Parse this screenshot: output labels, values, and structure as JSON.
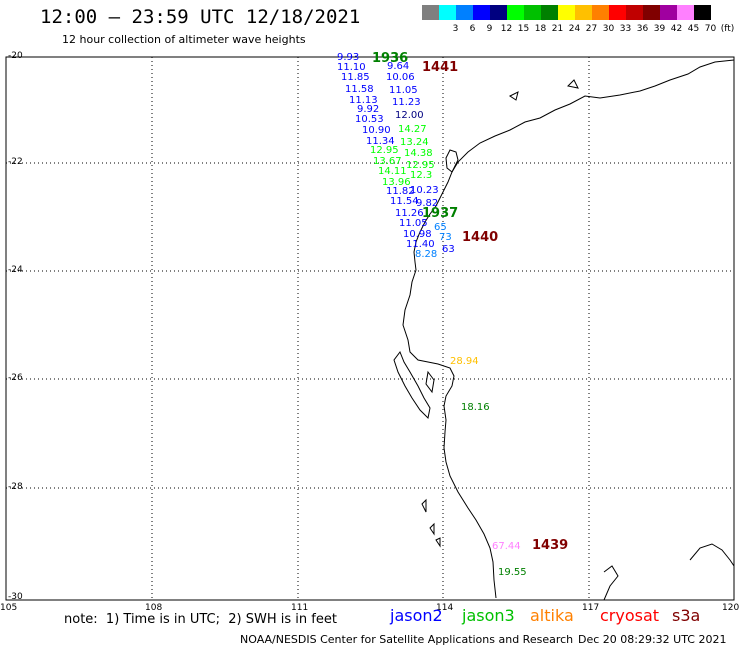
{
  "title": "12:00 – 23:59 UTC 12/18/2021",
  "subtitle": "12 hour collection of altimeter wave heights",
  "legend": [
    {
      "label": "",
      "color": "#7f7f7f"
    },
    {
      "label": "3",
      "color": "#00ffff"
    },
    {
      "label": "6",
      "color": "#0080ff"
    },
    {
      "label": "9",
      "color": "#0000ff"
    },
    {
      "label": "12",
      "color": "#000080"
    },
    {
      "label": "15",
      "color": "#00ff00"
    },
    {
      "label": "18",
      "color": "#00c000"
    },
    {
      "label": "21",
      "color": "#008000"
    },
    {
      "label": "24",
      "color": "#ffff00"
    },
    {
      "label": "27",
      "color": "#ffc000"
    },
    {
      "label": "30",
      "color": "#ff8000"
    },
    {
      "label": "33",
      "color": "#ff0000"
    },
    {
      "label": "36",
      "color": "#c00000"
    },
    {
      "label": "39",
      "color": "#800000"
    },
    {
      "label": "42",
      "color": "#a000a0"
    },
    {
      "label": "45",
      "color": "#ff80ff"
    },
    {
      "label": "70",
      "color": "#e0e0e0"
    },
    {
      "label": "(ft)",
      "color": "#000000"
    }
  ],
  "lat_labels": [
    "-20",
    "-22",
    "-24",
    "-26",
    "-28",
    "-30"
  ],
  "lon_labels": [
    "105",
    "108",
    "111",
    "114",
    "117",
    "120"
  ],
  "time_labels": [
    {
      "text": "1936",
      "color": "#008000"
    },
    {
      "text": "1441",
      "color": "#800000"
    },
    {
      "text": "1937",
      "color": "#008000"
    },
    {
      "text": "1440",
      "color": "#800000"
    },
    {
      "text": "1439",
      "color": "#800000"
    }
  ],
  "observations": [
    {
      "value": "9.93",
      "color": "#0000ff"
    },
    {
      "value": "9.64",
      "color": "#0000ff"
    },
    {
      "value": "11.10",
      "color": "#0000ff"
    },
    {
      "value": "10.06",
      "color": "#0000ff"
    },
    {
      "value": "11.85",
      "color": "#0000ff"
    },
    {
      "value": "11.58",
      "color": "#0000ff"
    },
    {
      "value": "11.05",
      "color": "#0000ff"
    },
    {
      "value": "11.13",
      "color": "#0000ff"
    },
    {
      "value": "11.23",
      "color": "#0000ff"
    },
    {
      "value": "9.92",
      "color": "#0000ff"
    },
    {
      "value": "10.53",
      "color": "#0000ff"
    },
    {
      "value": "12.00",
      "color": "#000080"
    },
    {
      "value": "10.90",
      "color": "#0000ff"
    },
    {
      "value": "14.27",
      "color": "#00ff00"
    },
    {
      "value": "11.34",
      "color": "#0000ff"
    },
    {
      "value": "13.24",
      "color": "#00ff00"
    },
    {
      "value": "12.95",
      "color": "#00ff00"
    },
    {
      "value": "14.38",
      "color": "#00ff00"
    },
    {
      "value": "13.67",
      "color": "#00ff00"
    },
    {
      "value": "12.95",
      "color": "#00ff00"
    },
    {
      "value": "14.11",
      "color": "#00ff00"
    },
    {
      "value": "12.3",
      "color": "#00ff00"
    },
    {
      "value": "13.96",
      "color": "#00ff00"
    },
    {
      "value": "11.82",
      "color": "#0000ff"
    },
    {
      "value": "10.23",
      "color": "#0000ff"
    },
    {
      "value": "11.54",
      "color": "#0000ff"
    },
    {
      "value": "9.82",
      "color": "#0000ff"
    },
    {
      "value": "11.26",
      "color": "#0000ff"
    },
    {
      "value": "11.05",
      "color": "#0000ff"
    },
    {
      "value": "10.98",
      "color": "#0000ff"
    },
    {
      "value": "11.40",
      "color": "#0000ff"
    },
    {
      "value": "65",
      "color": "#0080ff"
    },
    {
      "value": "73",
      "color": "#0080ff"
    },
    {
      "value": "8.28",
      "color": "#0080ff"
    },
    {
      "value": "63",
      "color": "#0000ff"
    },
    {
      "value": "28.94",
      "color": "#ffc000"
    },
    {
      "value": "18.16",
      "color": "#008000"
    },
    {
      "value": "67.44",
      "color": "#ff80ff"
    },
    {
      "value": "19.55",
      "color": "#008000"
    }
  ],
  "footnote": "note:  1) Time is in UTC;  2) SWH is in feet",
  "satellites": [
    {
      "name": "jason2",
      "color": "#0000ff"
    },
    {
      "name": "jason3",
      "color": "#00c000"
    },
    {
      "name": "altika",
      "color": "#ff8000"
    },
    {
      "name": "cryosat",
      "color": "#ff0000"
    },
    {
      "name": "s3a",
      "color": "#800000"
    }
  ],
  "credit": "NOAA/NESDIS Center for Satellite Applications and Research",
  "timestamp": "Dec 20 08:29:32 UTC 2021"
}
